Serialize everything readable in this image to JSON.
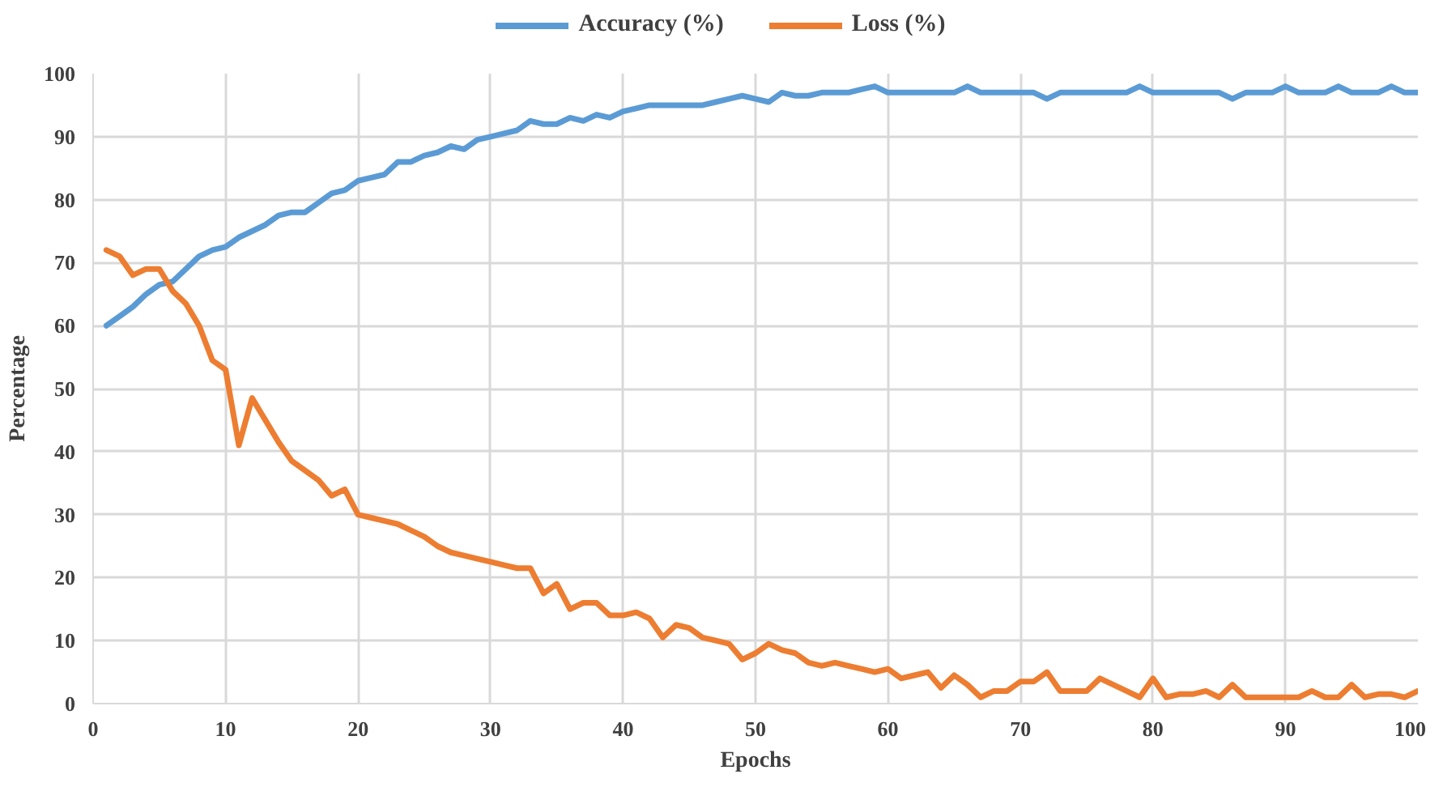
{
  "chart_data": {
    "type": "line",
    "xlabel": "Epochs",
    "ylabel": "Percentage",
    "x": [
      1,
      2,
      3,
      4,
      5,
      6,
      7,
      8,
      9,
      10,
      11,
      12,
      13,
      14,
      15,
      16,
      17,
      18,
      19,
      20,
      21,
      22,
      23,
      24,
      25,
      26,
      27,
      28,
      29,
      30,
      31,
      32,
      33,
      34,
      35,
      36,
      37,
      38,
      39,
      40,
      41,
      42,
      43,
      44,
      45,
      46,
      47,
      48,
      49,
      50,
      51,
      52,
      53,
      54,
      55,
      56,
      57,
      58,
      59,
      60,
      61,
      62,
      63,
      64,
      65,
      66,
      67,
      68,
      69,
      70,
      71,
      72,
      73,
      74,
      75,
      76,
      77,
      78,
      79,
      80,
      81,
      82,
      83,
      84,
      85,
      86,
      87,
      88,
      89,
      90,
      91,
      92,
      93,
      94,
      95,
      96,
      97,
      98,
      99,
      100
    ],
    "series": [
      {
        "name": "Accuracy (%)",
        "color": "#5b9bd5",
        "values": [
          60,
          61.5,
          63,
          65,
          66.5,
          67,
          69,
          71,
          72,
          72.5,
          74,
          75,
          76,
          77.5,
          78,
          78,
          79.5,
          81,
          81.5,
          83,
          83.5,
          84,
          86,
          86,
          87,
          87.5,
          88.5,
          88,
          89.5,
          90,
          90.5,
          91,
          92.5,
          92,
          92,
          93,
          92.5,
          93.5,
          93,
          94,
          94.5,
          95,
          95,
          95,
          95,
          95,
          95.5,
          96,
          96.5,
          96,
          95.5,
          97,
          96.5,
          96.5,
          97,
          97,
          97,
          97.5,
          98,
          97,
          97,
          97,
          97,
          97,
          97,
          98,
          97,
          97,
          97,
          97,
          97,
          96,
          97,
          97,
          97,
          97,
          97,
          97,
          98,
          97,
          97,
          97,
          97,
          97,
          97,
          96,
          97,
          97,
          97,
          98,
          97,
          97,
          97,
          98,
          97,
          97,
          97,
          98,
          97,
          97
        ]
      },
      {
        "name": "Loss (%)",
        "color": "#ed7d31",
        "values": [
          72,
          71,
          68,
          69,
          69,
          65.5,
          63.5,
          60,
          54.5,
          53,
          41,
          48.5,
          45,
          41.5,
          38.5,
          37,
          35.5,
          33,
          34,
          30,
          29.5,
          29,
          28.5,
          27.5,
          26.5,
          25,
          24,
          23.5,
          23,
          22.5,
          22,
          21.5,
          21.5,
          17.5,
          19,
          15,
          16,
          16,
          14,
          14,
          14.5,
          13.5,
          10.5,
          12.5,
          12,
          10.5,
          10,
          9.5,
          7,
          8,
          9.5,
          8.5,
          8,
          6.5,
          6,
          6.5,
          6,
          5.5,
          5,
          5.5,
          4,
          4.5,
          5,
          2.5,
          4.5,
          3,
          1,
          2,
          2,
          3.5,
          3.5,
          5,
          2,
          2,
          2,
          4,
          3,
          2,
          1,
          4,
          1,
          1.5,
          1.5,
          2,
          1,
          3,
          1,
          1,
          1,
          1,
          1,
          2,
          1,
          1,
          3,
          1,
          1.5,
          1.5,
          1,
          2
        ]
      }
    ],
    "xlim": [
      0,
      100
    ],
    "xticks": [
      0,
      10,
      20,
      30,
      40,
      50,
      60,
      70,
      80,
      90,
      100
    ],
    "ylim": [
      0,
      100
    ],
    "yticks": [
      0,
      10,
      20,
      30,
      40,
      50,
      60,
      70,
      80,
      90,
      100
    ],
    "grid": true,
    "legend": "top",
    "marker": "none",
    "line_style": "solid"
  }
}
